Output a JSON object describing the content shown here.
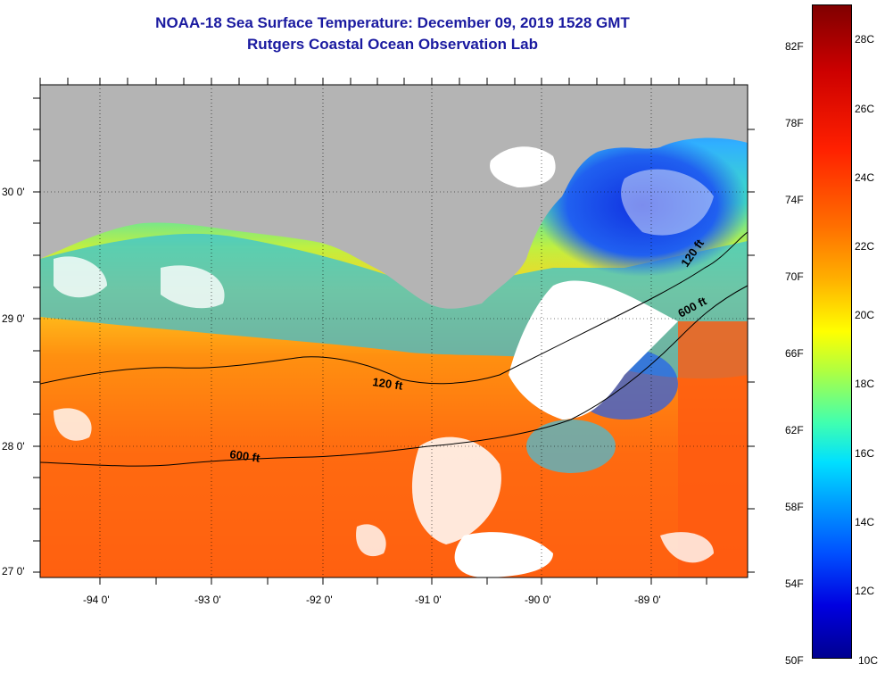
{
  "header": {
    "title_line1": "NOAA-18 Sea Surface Temperature:  December 09, 2019 1528 GMT",
    "title_line2": "Rutgers Coastal Ocean Observation Lab"
  },
  "map": {
    "lat_labels": [
      "30 0'",
      "29 0'",
      "28 0'",
      "27 0'"
    ],
    "lon_labels": [
      "-94 0'",
      "-93 0'",
      "-92 0'",
      "-91 0'",
      "-90 0'",
      "-89 0'"
    ],
    "contour_labels": [
      "120 ft",
      "600 ft",
      "600 ft",
      "120 ft"
    ]
  },
  "colorbar": {
    "fahrenheit_labels": [
      "82F",
      "78F",
      "74F",
      "70F",
      "66F",
      "62F",
      "58F",
      "54F",
      "50F"
    ],
    "celsius_labels": [
      "28C",
      "26C",
      "24C",
      "22C",
      "20C",
      "18C",
      "16C",
      "14C",
      "12C",
      "10C"
    ]
  },
  "colors": {
    "land": "#b4b4b4",
    "title": "#1a1aa0",
    "cloud": "#ffffff"
  }
}
